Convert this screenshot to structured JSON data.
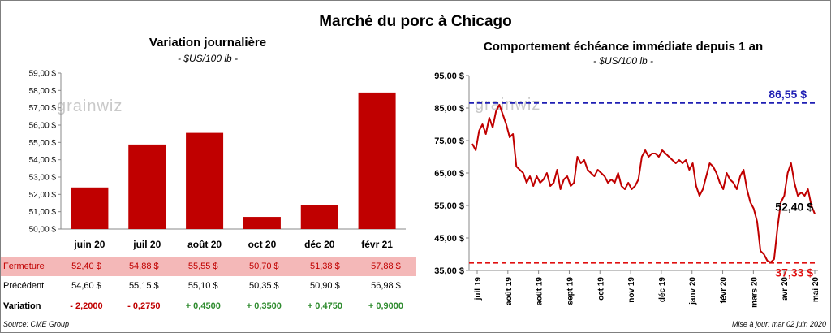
{
  "title": "Marché du porc à Chicago",
  "left": {
    "subtitle": "Variation  journalière",
    "unit": "- $US/100 lb -"
  },
  "right": {
    "subtitle": "Comportement  échéance immédiate depuis 1 an",
    "unit": "- $US/100 lb -"
  },
  "watermark": "grainwiz",
  "table": {
    "rows": [
      {
        "label": "Fermeture",
        "values": [
          "52,40  $",
          "54,88  $",
          "55,55  $",
          "50,70  $",
          "51,38  $",
          "57,88  $"
        ]
      },
      {
        "label": "Précédent",
        "values": [
          "54,60  $",
          "55,15  $",
          "55,10  $",
          "50,35  $",
          "50,90  $",
          "56,98  $"
        ]
      },
      {
        "label": "Variation",
        "values": [
          "- 2,2000",
          "- 0,2750",
          "+ 0,4500",
          "+ 0,3500",
          "+ 0,4750",
          "+ 0,9000"
        ]
      }
    ]
  },
  "footer": {
    "source": "Source: CME Group",
    "updated": "Mise à jour: mar 02 juin 2020"
  },
  "colors": {
    "bar": "#c00000",
    "line": "#c00000",
    "high": "#1f1fb4",
    "low": "#e01010"
  },
  "chart_data": [
    {
      "type": "bar",
      "title": "Variation  journalière",
      "categories": [
        "juin 20",
        "juil 20",
        "août 20",
        "oct 20",
        "déc 20",
        "févr 21"
      ],
      "values": [
        52.4,
        54.88,
        55.55,
        50.7,
        51.38,
        57.88
      ],
      "ylim": [
        50,
        59
      ],
      "yticks": [
        "50,00 $",
        "51,00 $",
        "52,00 $",
        "53,00 $",
        "54,00 $",
        "55,00 $",
        "56,00 $",
        "57,00 $",
        "58,00 $",
        "59,00 $"
      ]
    },
    {
      "type": "line",
      "title": "Comportement  échéance immédiate depuis 1 an",
      "ylim": [
        35,
        95
      ],
      "yticks": [
        "35,00 $",
        "45,00 $",
        "55,00 $",
        "65,00 $",
        "75,00 $",
        "85,00 $",
        "95,00 $"
      ],
      "xticks": [
        "juil 19",
        "août 19",
        "août 19",
        "sept 19",
        "oct 19",
        "nov 19",
        "déc 19",
        "janv 20",
        "févr 20",
        "mars 20",
        "avr 20",
        "mai 20"
      ],
      "high": {
        "value": 86.55,
        "label": "86,55 $"
      },
      "low": {
        "value": 37.33,
        "label": "37,33 $"
      },
      "last": {
        "value": 52.4,
        "label": "52,40 $"
      },
      "values": [
        74,
        72,
        78,
        80,
        77,
        82,
        79,
        84,
        86,
        83,
        80,
        76,
        77,
        67,
        66,
        65,
        62,
        64,
        61,
        64,
        62,
        63,
        65,
        61,
        62,
        66,
        60,
        63,
        64,
        61,
        62,
        70,
        68,
        69,
        66,
        65,
        64,
        66,
        65,
        64,
        62,
        63,
        62,
        65,
        61,
        60,
        62,
        60,
        61,
        63,
        70,
        72,
        70,
        71,
        71,
        70,
        72,
        71,
        70,
        69,
        68,
        69,
        68,
        69,
        66,
        68,
        61,
        58,
        60,
        64,
        68,
        67,
        65,
        62,
        60,
        65,
        63,
        62,
        60,
        64,
        66,
        60,
        56,
        54,
        50,
        41,
        40,
        38,
        37.5,
        38.5,
        48,
        56,
        58,
        65,
        68,
        62,
        58,
        59,
        58,
        60,
        55,
        52.4
      ]
    }
  ]
}
